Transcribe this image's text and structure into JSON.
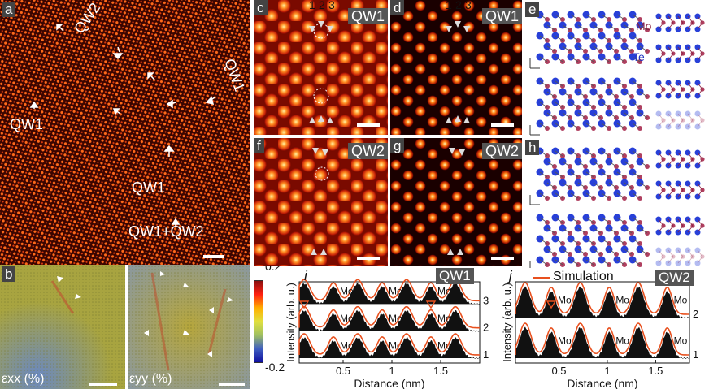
{
  "panels": {
    "a": {
      "label": "a",
      "annotations": [
        "QW2",
        "QW1",
        "QW1",
        "QW1",
        "QW1+QW2"
      ]
    },
    "b": {
      "label": "b",
      "left_label": "εxx (%)",
      "right_label": "εyy (%)",
      "colorbar": {
        "max": "0.2",
        "min": "-0.2"
      }
    },
    "c": {
      "label": "c",
      "tag": "QW1",
      "columns": [
        "1",
        "2",
        "3"
      ]
    },
    "d": {
      "label": "d",
      "tag": "QW1",
      "columns": [
        "1",
        "2",
        "3"
      ]
    },
    "e": {
      "label": "e",
      "mo": "Mo",
      "te": "Te"
    },
    "f": {
      "label": "f",
      "tag": "QW2"
    },
    "g": {
      "label": "g",
      "tag": "QW2"
    },
    "h": {
      "label": "h"
    },
    "i": {
      "label": "i",
      "tag": "QW1"
    },
    "j": {
      "label": "j",
      "tag": "QW2",
      "legend": "Simulation"
    }
  },
  "colors": {
    "background": "#2a0000",
    "atom": "#ff5a14",
    "strain_green": "#a6a33c",
    "sim_line": "#e8501e"
  },
  "chart_data": [
    {
      "type": "line",
      "panel": "i",
      "title": "",
      "xlabel": "Distance (nm)",
      "ylabel": "Intensity (arb. u.)",
      "xticks": [
        "0.5",
        "1",
        "1.5"
      ],
      "xlim": [
        0.05,
        1.9
      ],
      "trace_labels": [
        "3",
        "2",
        "1"
      ],
      "peak_label": "Mo",
      "series": [
        {
          "name": "Simulation",
          "x": [
            0.1,
            0.4,
            0.65,
            0.9,
            1.15,
            1.4,
            1.65
          ],
          "values": [
            1,
            1,
            1,
            1,
            1,
            1,
            1
          ]
        }
      ]
    },
    {
      "type": "line",
      "panel": "j",
      "title": "",
      "xlabel": "Distance (nm)",
      "ylabel": "Intensity (arb. u.)",
      "xticks": [
        "0.5",
        "1",
        "1.5"
      ],
      "xlim": [
        0.05,
        1.85
      ],
      "trace_labels": [
        "2",
        "1"
      ],
      "peak_label": "Mo",
      "series": [
        {
          "name": "Simulation",
          "x": [
            0.15,
            0.42,
            0.72,
            1.02,
            1.32,
            1.62
          ],
          "values": [
            1,
            1,
            1,
            1,
            1,
            1
          ]
        }
      ]
    }
  ]
}
